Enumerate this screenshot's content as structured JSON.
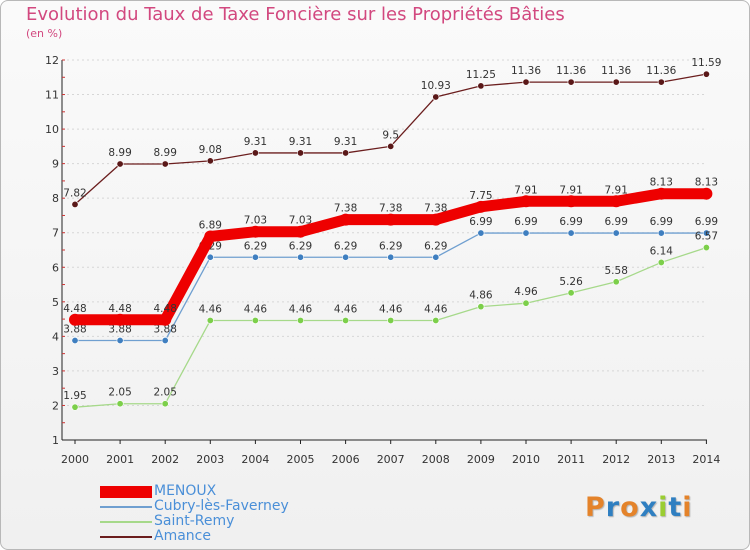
{
  "header": {
    "title": "Evolution du Taux de Taxe Foncière sur les Propriétés Bâties",
    "unit": "(en %)"
  },
  "chart_data": {
    "type": "line",
    "title": "Evolution du Taux de Taxe Foncière sur les Propriétés Bâties",
    "ylabel": "(en %)",
    "xlabel": "",
    "x": [
      2000,
      2001,
      2002,
      2003,
      2004,
      2005,
      2006,
      2007,
      2008,
      2009,
      2010,
      2011,
      2012,
      2013,
      2014
    ],
    "ylim": [
      1,
      12
    ],
    "yticks": [
      1,
      2,
      3,
      4,
      5,
      6,
      7,
      8,
      9,
      10,
      11,
      12
    ],
    "grid": "horizontal",
    "legend_position": "bottom-left",
    "series": [
      {
        "name": "Amance",
        "color": "#6b1e1e",
        "marker": "#5a1818",
        "values": [
          7.82,
          8.99,
          8.99,
          9.08,
          9.31,
          9.31,
          9.31,
          9.5,
          10.93,
          11.25,
          11.36,
          11.36,
          11.36,
          11.36,
          11.59
        ],
        "labels": [
          "7.82",
          "8.99",
          "8.99",
          "9.08",
          "9.31",
          "9.31",
          "9.31",
          "9.5",
          "10.93",
          "11.25",
          "11.36",
          "11.36",
          "11.36",
          "11.36",
          "11.59"
        ]
      },
      {
        "name": "Cubry-lès-Faverney",
        "color": "#6f9fd0",
        "marker": "#3f7fc0",
        "values": [
          3.88,
          3.88,
          3.88,
          6.29,
          6.29,
          6.29,
          6.29,
          6.29,
          6.29,
          6.99,
          6.99,
          6.99,
          6.99,
          6.99,
          6.99
        ],
        "labels": [
          "3.88",
          "3.88",
          "3.88",
          "6.29",
          "6.29",
          "6.29",
          "6.29",
          "6.29",
          "6.29",
          "6.99",
          "6.99",
          "6.99",
          "6.99",
          "6.99",
          "6.99"
        ]
      },
      {
        "name": "Saint-Remy",
        "color": "#a6d98a",
        "marker": "#7ccf4a",
        "values": [
          1.95,
          2.05,
          2.05,
          4.46,
          4.46,
          4.46,
          4.46,
          4.46,
          4.46,
          4.86,
          4.96,
          5.26,
          5.58,
          6.14,
          6.57
        ],
        "labels": [
          "1.95",
          "2.05",
          "2.05",
          "4.46",
          "4.46",
          "4.46",
          "4.46",
          "4.46",
          "4.46",
          "4.86",
          "4.96",
          "5.26",
          "5.58",
          "6.14",
          "6.57"
        ]
      },
      {
        "name": "MENOUX",
        "color": "#ee0000",
        "marker": "#ee0000",
        "values": [
          4.48,
          4.48,
          4.48,
          6.89,
          7.03,
          7.03,
          7.38,
          7.38,
          7.38,
          7.75,
          7.91,
          7.91,
          7.91,
          8.13,
          8.13
        ],
        "labels": [
          "4.48",
          "4.48",
          "4.48",
          "6.89",
          "7.03",
          "7.03",
          "7.38",
          "7.38",
          "7.38",
          "7.75",
          "7.91",
          "7.91",
          "7.91",
          "8.13",
          "8.13"
        ]
      }
    ]
  },
  "legend": {
    "items": [
      {
        "label": "MENOUX",
        "color": "#ee0000"
      },
      {
        "label": "Cubry-lès-Faverney",
        "color": "#6f9fd0"
      },
      {
        "label": "Saint-Remy",
        "color": "#a6d98a"
      },
      {
        "label": "Amance",
        "color": "#6b1e1e"
      }
    ]
  },
  "logo": {
    "text": "Proxiti",
    "letter_colors": [
      "#e4832a",
      "#2f7fc1",
      "#e4832a",
      "#2f7fc1",
      "#9acd32",
      "#2f7fc1",
      "#e4832a"
    ]
  }
}
